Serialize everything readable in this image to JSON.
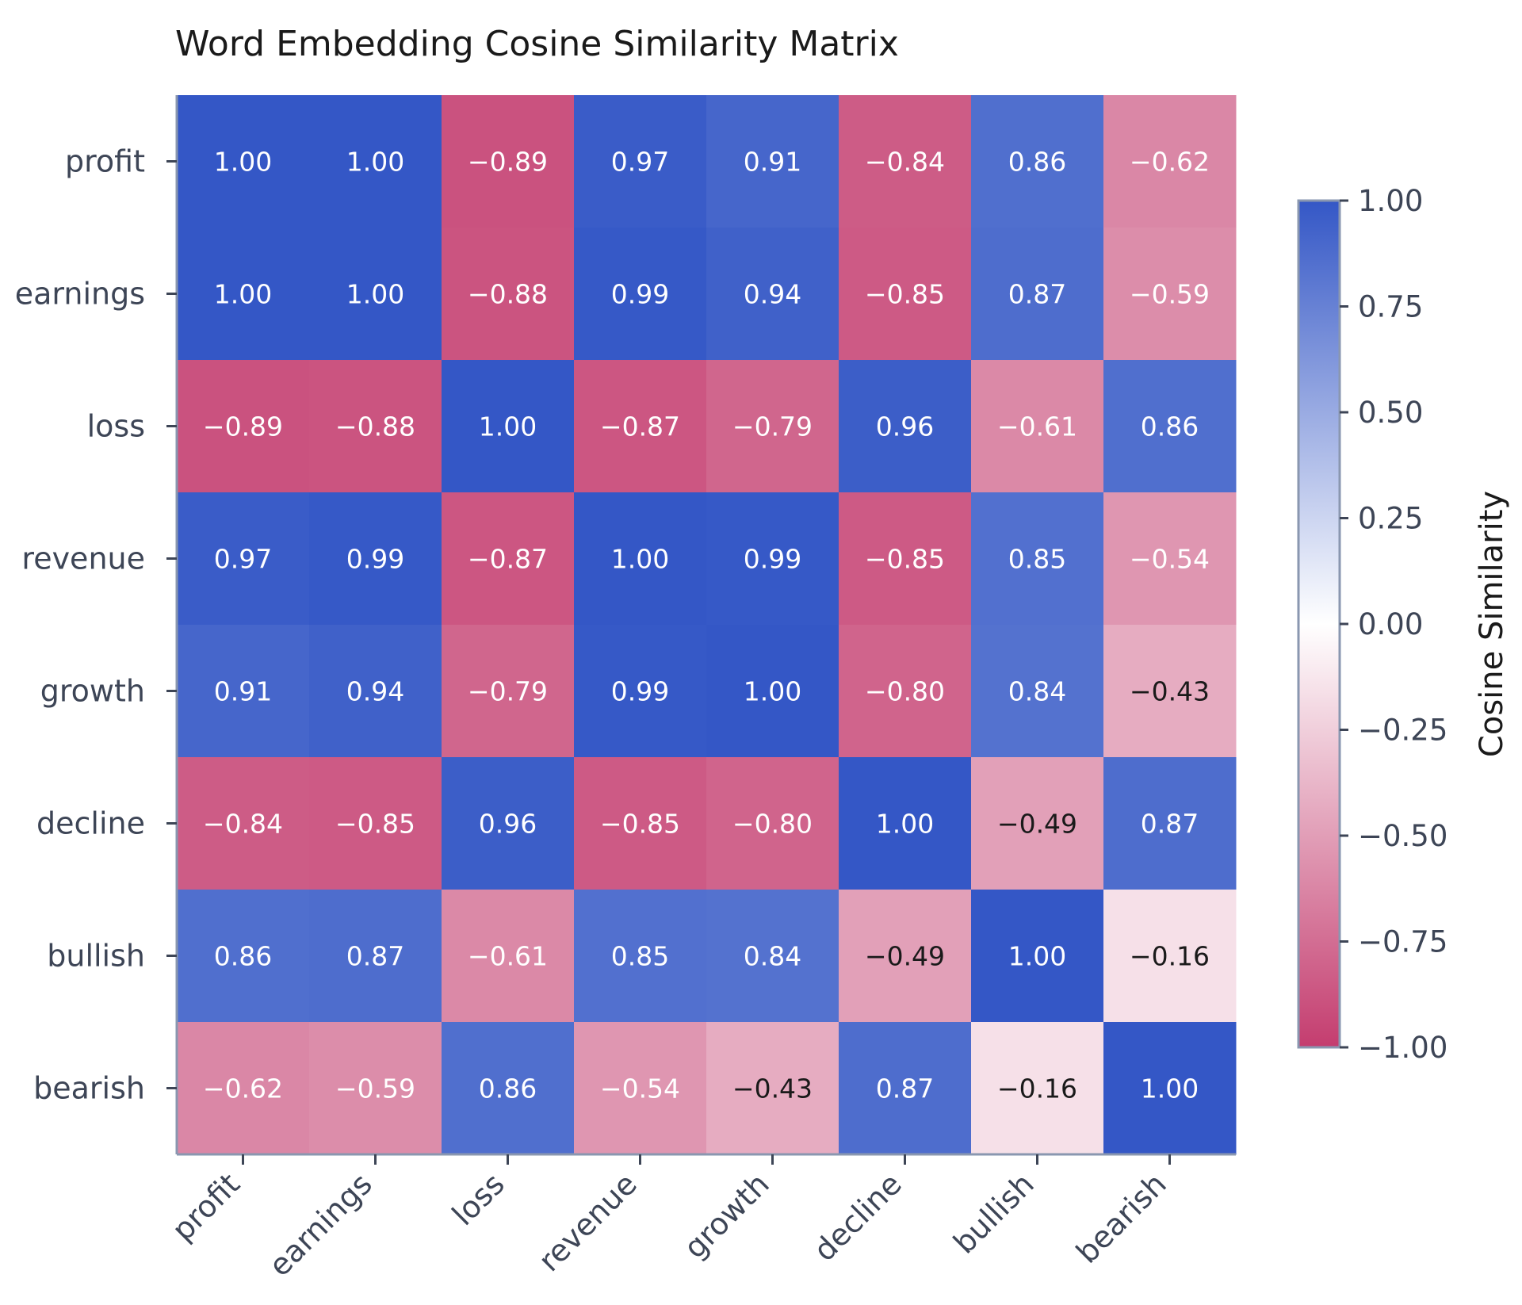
{
  "chart_data": {
    "type": "heatmap",
    "title": "Word Embedding Cosine Similarity Matrix",
    "x_labels": [
      "profit",
      "earnings",
      "loss",
      "revenue",
      "growth",
      "decline",
      "bullish",
      "bearish"
    ],
    "y_labels": [
      "profit",
      "earnings",
      "loss",
      "revenue",
      "growth",
      "decline",
      "bullish",
      "bearish"
    ],
    "values": [
      [
        1.0,
        1.0,
        -0.89,
        0.97,
        0.91,
        -0.84,
        0.86,
        -0.62
      ],
      [
        1.0,
        1.0,
        -0.88,
        0.99,
        0.94,
        -0.85,
        0.87,
        -0.59
      ],
      [
        -0.89,
        -0.88,
        1.0,
        -0.87,
        -0.79,
        0.96,
        -0.61,
        0.86
      ],
      [
        0.97,
        0.99,
        -0.87,
        1.0,
        0.99,
        -0.85,
        0.85,
        -0.54
      ],
      [
        0.91,
        0.94,
        -0.79,
        0.99,
        1.0,
        -0.8,
        0.84,
        -0.43
      ],
      [
        -0.84,
        -0.85,
        0.96,
        -0.85,
        -0.8,
        1.0,
        -0.49,
        0.87
      ],
      [
        0.86,
        0.87,
        -0.61,
        0.85,
        0.84,
        -0.49,
        1.0,
        -0.16
      ],
      [
        -0.62,
        -0.59,
        0.86,
        -0.54,
        -0.43,
        0.87,
        -0.16,
        1.0
      ]
    ],
    "value_format": "2 decimals",
    "colorbar": {
      "label": "Cosine Similarity",
      "range": [
        -1.0,
        1.0
      ],
      "ticks": [
        1.0,
        0.75,
        0.5,
        0.25,
        0.0,
        -0.25,
        -0.5,
        -0.75,
        -1.0
      ],
      "tick_labels": [
        "1.00",
        "0.75",
        "0.50",
        "0.25",
        "0.00",
        "−0.25",
        "−0.50",
        "−0.75",
        "−1.00"
      ],
      "colors": {
        "high": "#3457c6",
        "mid": "#ffffff",
        "low": "#c43d6f"
      }
    },
    "text_color_light": "#ffffff",
    "text_color_dark": "#1a1a1a",
    "axis_color": "#8a97b0",
    "label_color": "#3d4556"
  }
}
